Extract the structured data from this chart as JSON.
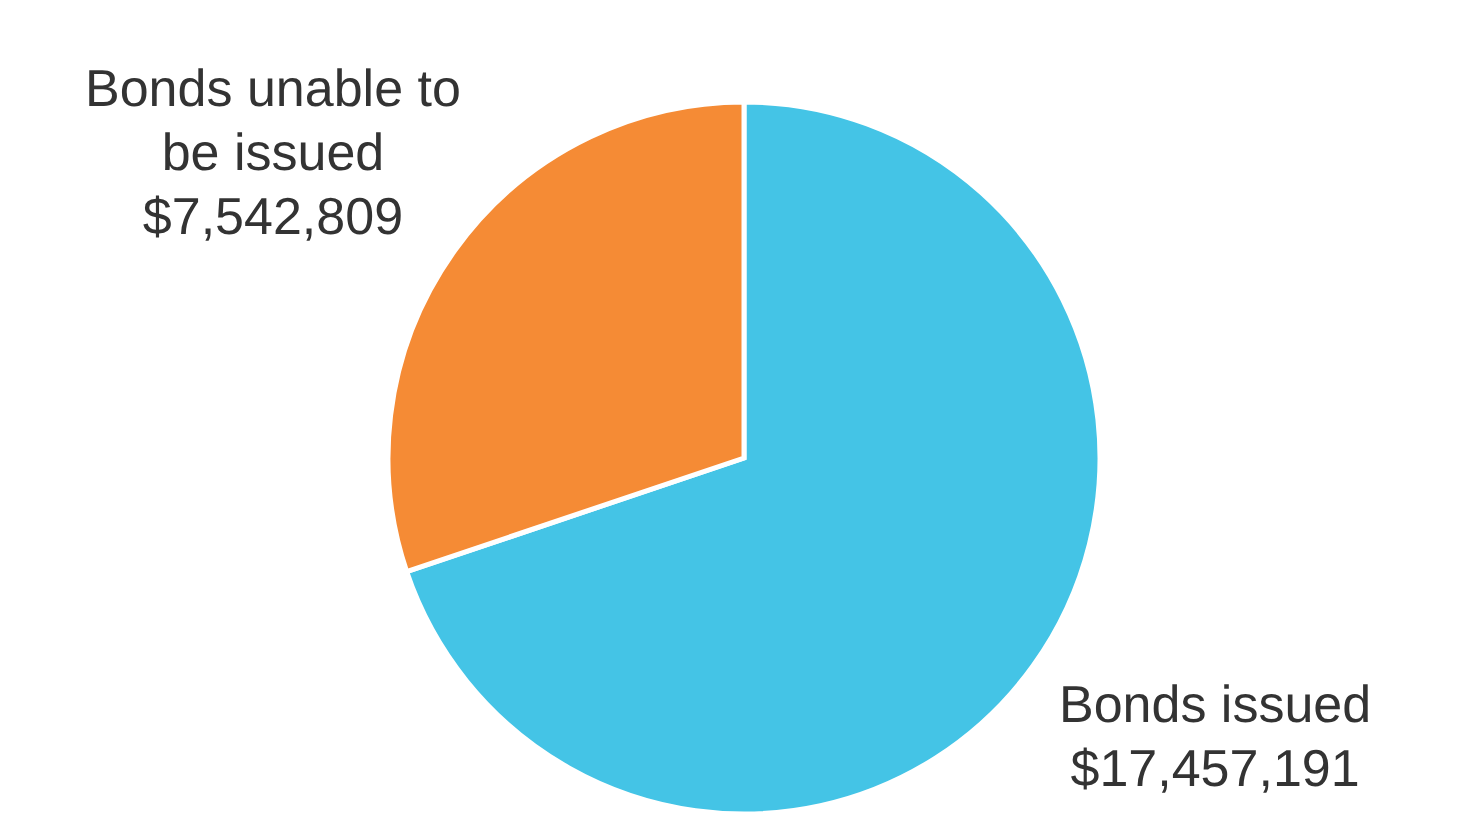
{
  "chart_data": {
    "type": "pie",
    "categories": [
      "Bonds issued",
      "Bonds unable to be issued"
    ],
    "values": [
      17457191,
      7542809
    ],
    "colors": [
      "#44c4e6",
      "#f58b35"
    ],
    "value_labels": [
      "$17,457,191",
      "$7,542,809"
    ]
  }
}
